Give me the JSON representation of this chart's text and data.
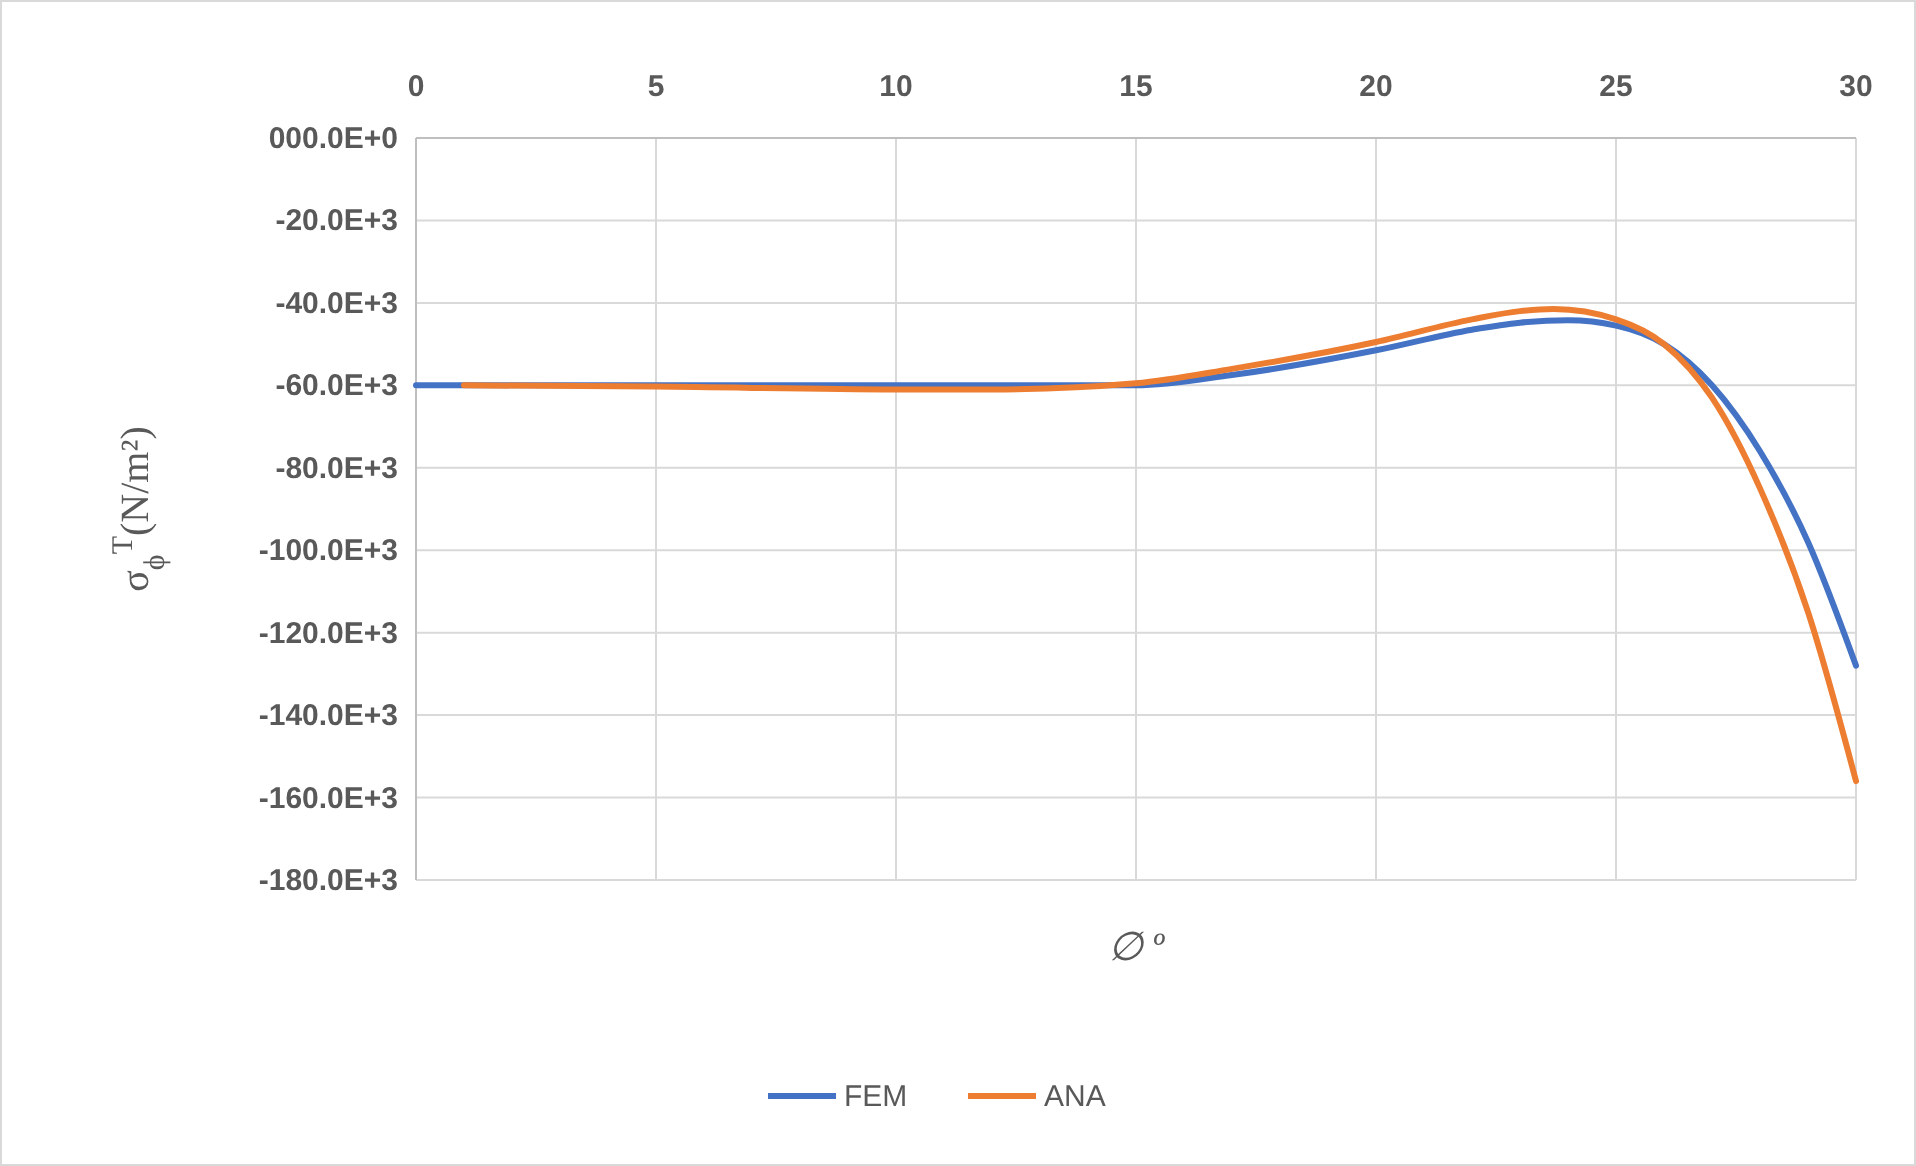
{
  "chart_data": {
    "type": "line",
    "xlabel": "∅ º",
    "ylabel": "σ$_{ϕ}$$^{T}$(N/m²)",
    "xlim": [
      0,
      30
    ],
    "xticks": [
      0,
      5,
      10,
      15,
      20,
      25,
      30
    ],
    "ylim": [
      -180000,
      0
    ],
    "yticks": [
      {
        "value": 0,
        "label": "000.0E+0"
      },
      {
        "value": -20000,
        "label": "-20.0E+3"
      },
      {
        "value": -40000,
        "label": "-40.0E+3"
      },
      {
        "value": -60000,
        "label": "-60.0E+3"
      },
      {
        "value": -80000,
        "label": "-80.0E+3"
      },
      {
        "value": -100000,
        "label": "-100.0E+3"
      },
      {
        "value": -120000,
        "label": "-120.0E+3"
      },
      {
        "value": -140000,
        "label": "-140.0E+3"
      },
      {
        "value": -160000,
        "label": "-160.0E+3"
      },
      {
        "value": -180000,
        "label": "-180.0E+3"
      }
    ],
    "grid": true,
    "legend": "bottom",
    "marker": "none",
    "line_style": "solid",
    "series": [
      {
        "name": "FEM",
        "color": "#4472c4",
        "x": [
          0,
          1,
          5,
          10,
          12,
          15,
          17,
          20,
          22,
          23,
          24,
          25,
          26,
          27,
          28,
          29,
          30
        ],
        "values": [
          -60000,
          -60000,
          null,
          null,
          null,
          -60000,
          -57500,
          -51500,
          -46500,
          -44800,
          -44200,
          -45500,
          -50000,
          -60000,
          -76000,
          -98000,
          -128000
        ]
      },
      {
        "name": "ANA",
        "color": "#ed7d31",
        "x": [
          1,
          5,
          10,
          12,
          15,
          17,
          20,
          22,
          23,
          23.7,
          25,
          26,
          27,
          28,
          29,
          30
        ],
        "values": [
          -60000,
          -60300,
          -61000,
          -61000,
          -59500,
          -56000,
          -49500,
          -44000,
          -42000,
          -41500,
          -44000,
          -50000,
          -63000,
          -85000,
          -115000,
          -156000
        ]
      }
    ]
  }
}
